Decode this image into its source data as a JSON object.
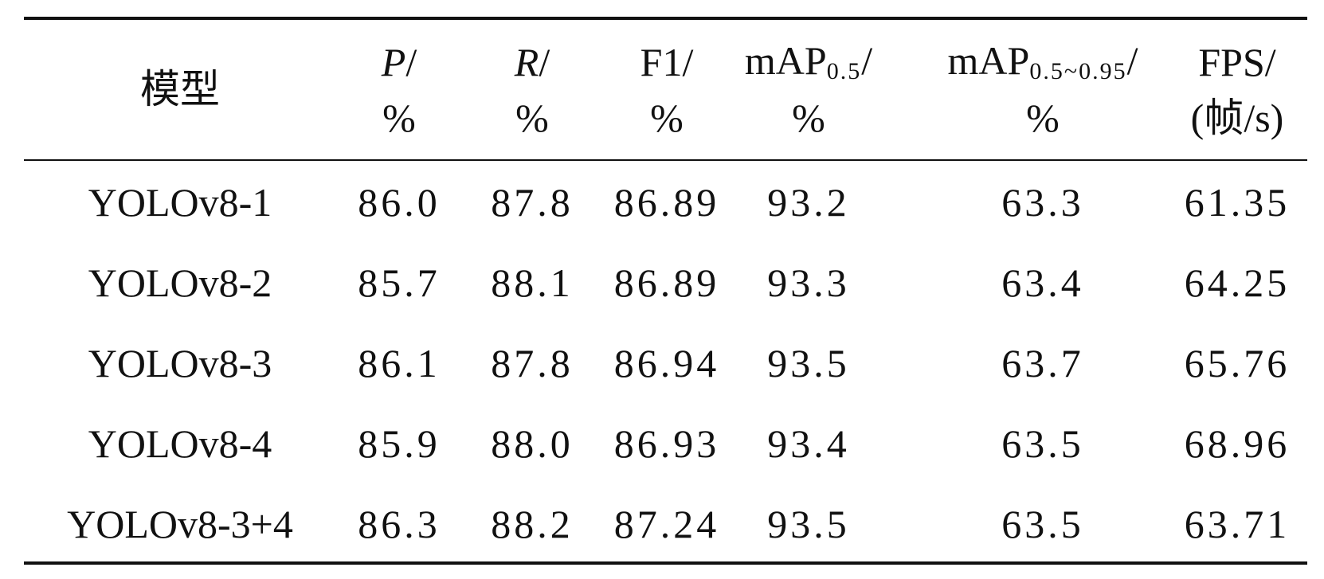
{
  "table": {
    "header": [
      {
        "name": "模型"
      },
      {
        "name": "P",
        "suffix": "/",
        "unit": "%",
        "italic": true
      },
      {
        "name": "R",
        "suffix": "/",
        "unit": "%",
        "italic": true
      },
      {
        "name": "F1",
        "suffix": "/",
        "unit": "%"
      },
      {
        "name": "mAP",
        "sub": "0.5",
        "suffix": "/",
        "unit": "%"
      },
      {
        "name": "mAP",
        "sub": "0.5~0.95",
        "suffix": "/",
        "unit": "%"
      },
      {
        "name": "FPS",
        "suffix": "/",
        "unit": "(帧/s)"
      }
    ],
    "rows": [
      [
        "YOLOv8-1",
        "86.0",
        "87.8",
        "86.89",
        "93.2",
        "63.3",
        "61.35"
      ],
      [
        "YOLOv8-2",
        "85.7",
        "88.1",
        "86.89",
        "93.3",
        "63.4",
        "64.25"
      ],
      [
        "YOLOv8-3",
        "86.1",
        "87.8",
        "86.94",
        "93.5",
        "63.7",
        "65.76"
      ],
      [
        "YOLOv8-4",
        "85.9",
        "88.0",
        "86.93",
        "93.4",
        "63.5",
        "68.96"
      ],
      [
        "YOLOv8-3+4",
        "86.3",
        "88.2",
        "87.24",
        "93.5",
        "63.5",
        "63.71"
      ]
    ]
  }
}
